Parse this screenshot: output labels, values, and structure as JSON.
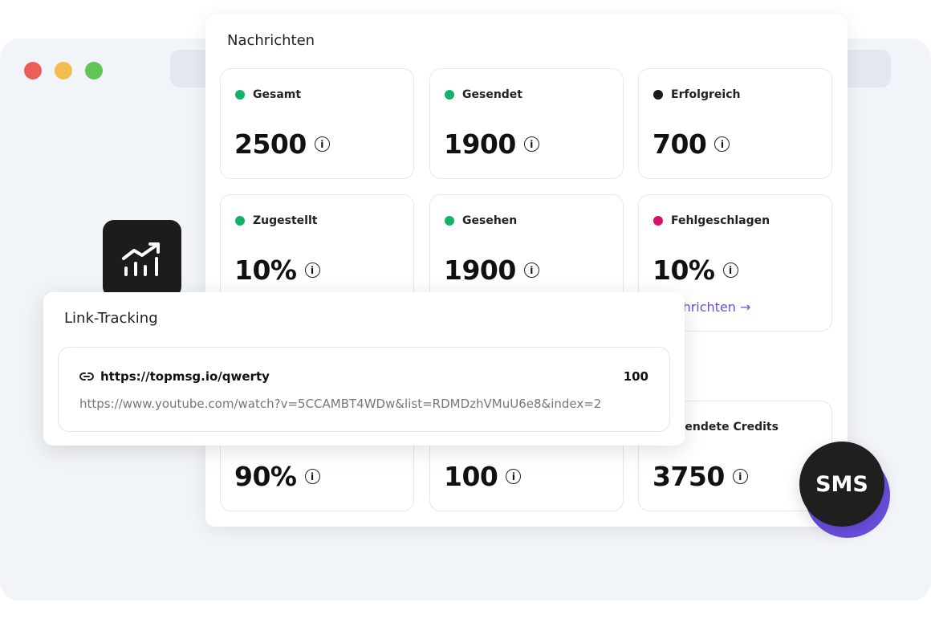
{
  "window": {
    "dots": [
      "#ec5f57",
      "#f4bd4f",
      "#61c454"
    ]
  },
  "main": {
    "title": "Nachrichten",
    "stats": [
      {
        "label": "Gesamt",
        "value": "2500",
        "dot": "#13b26b"
      },
      {
        "label": "Gesendet",
        "value": "1900",
        "dot": "#13b26b"
      },
      {
        "label": "Erfolgreich",
        "value": "700",
        "dot": "#1a1a1a"
      },
      {
        "label": "Zugestellt",
        "value": "10%",
        "dot": "#13b26b"
      },
      {
        "label": "Gesehen",
        "value": "1900",
        "dot": "#13b26b"
      },
      {
        "label": "Fehlgeschlagen",
        "value": "10%",
        "dot": "#d6136a",
        "link": "Nachrichten →"
      },
      {
        "value": "90%"
      },
      {
        "value": "100"
      },
      {
        "label": "Verwendete Credits",
        "value": "3750"
      }
    ]
  },
  "link_tracking": {
    "title": "Link-Tracking",
    "short_url": "https://topmsg.io/qwerty",
    "count": "100",
    "long_url": "https://www.youtube.com/watch?v=5CCAMBT4WDw&list=RDMDzhVMuU6e8&index=2"
  },
  "badge": {
    "label": "SMS",
    "accent": "#6b4fe0"
  }
}
